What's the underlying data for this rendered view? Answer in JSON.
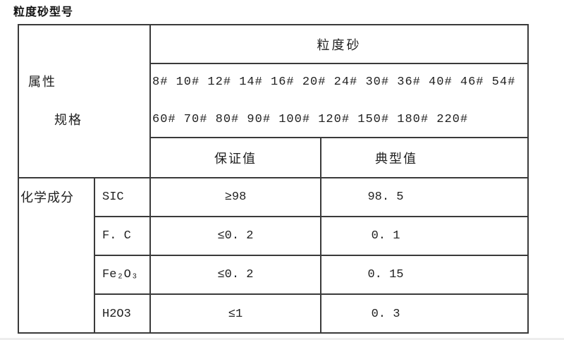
{
  "page": {
    "title": "粒度砂型号"
  },
  "table": {
    "header": {
      "attribute_label": "属性",
      "spec_label": "规格",
      "product_label": "粒度砂",
      "sizes_line1": "8# 10# 12# 14# 16# 20# 24# 30# 36# 40# 46# 54#",
      "sizes_line2": "60# 70# 80# 90# 100# 120# 150# 180# 220#",
      "guaranteed_label": "保证值",
      "typical_label": "典型值"
    },
    "section_label": "化学成分",
    "rows": [
      {
        "component": "SIC",
        "guaranteed": "≥98",
        "typical": "98. 5"
      },
      {
        "component": "F. C",
        "guaranteed": "≤0. 2",
        "typical": "0. 1"
      },
      {
        "component": "Fe₂O₃",
        "guaranteed": "≤0. 2",
        "typical": "0. 15"
      },
      {
        "component": "H2O3",
        "guaranteed": "≤1",
        "typical": "0. 3"
      }
    ]
  },
  "colors": {
    "border": "#3a3a3a",
    "text": "#1f1f1f",
    "background": "#ffffff"
  }
}
